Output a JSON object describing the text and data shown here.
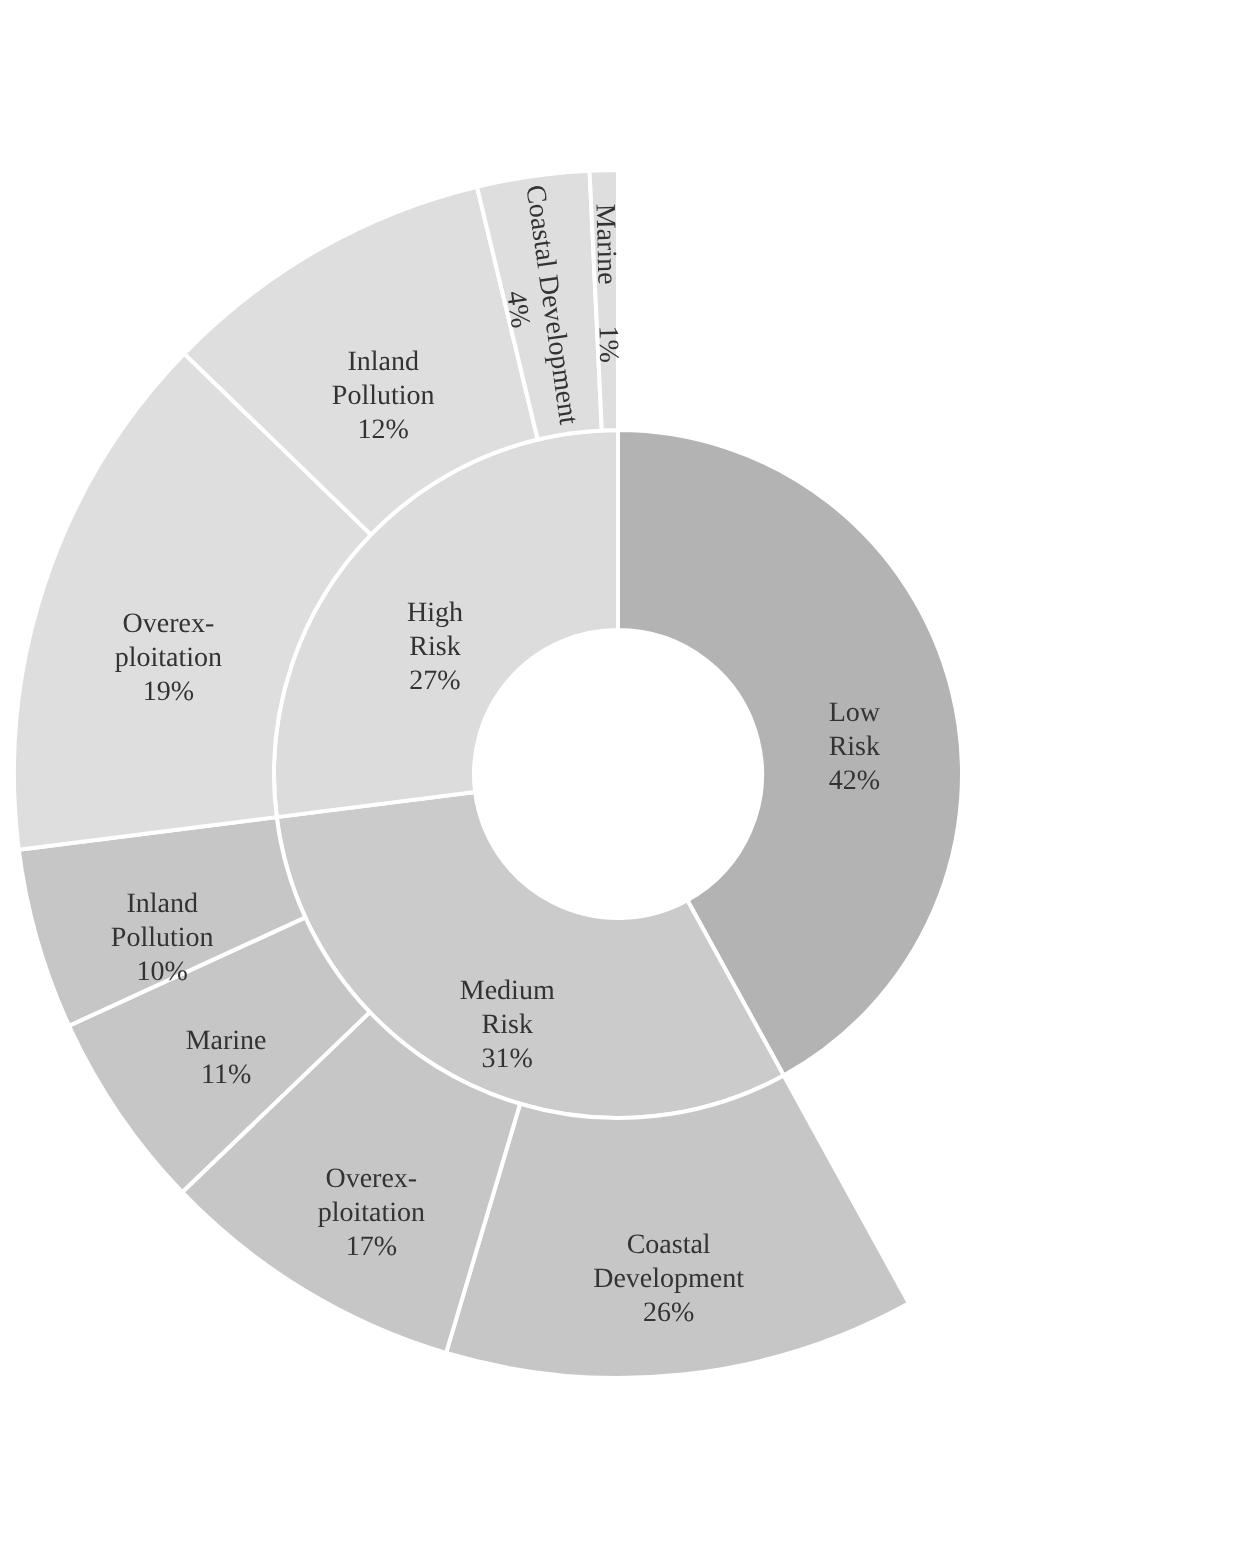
{
  "chart_data": [
    {
      "type": "donut",
      "categories": [
        "Low Risk",
        "Medium Risk",
        "High Risk"
      ],
      "values": [
        42,
        31,
        27
      ],
      "value_labels": [
        "42%",
        "31%",
        "27%"
      ],
      "colors": [
        "#b3b3b3",
        "#cbcbcb",
        "#dcdcdc"
      ]
    },
    {
      "type": "other",
      "categories": [
        "Coastal Development",
        "Overex-ploitation",
        "Marine",
        "Inland Pollution"
      ],
      "values": [
        26,
        17,
        11,
        10
      ],
      "value_labels": [
        "26%",
        "17%",
        "11%",
        "10%"
      ],
      "colors": [
        "#c6c6c6",
        "#c6c6c6",
        "#c6c6c6",
        "#c6c6c6"
      ]
    },
    {
      "type": "other",
      "categories": [
        "Overex-ploitation",
        "Inland Pollution",
        "Coastal Development",
        "Marine"
      ],
      "values": [
        19,
        12,
        4,
        1
      ],
      "value_labels": [
        "19%",
        "12%",
        "4%",
        "1%"
      ],
      "colors": [
        "#dedede",
        "#dedede",
        "#dedede",
        "#dedede"
      ]
    }
  ]
}
